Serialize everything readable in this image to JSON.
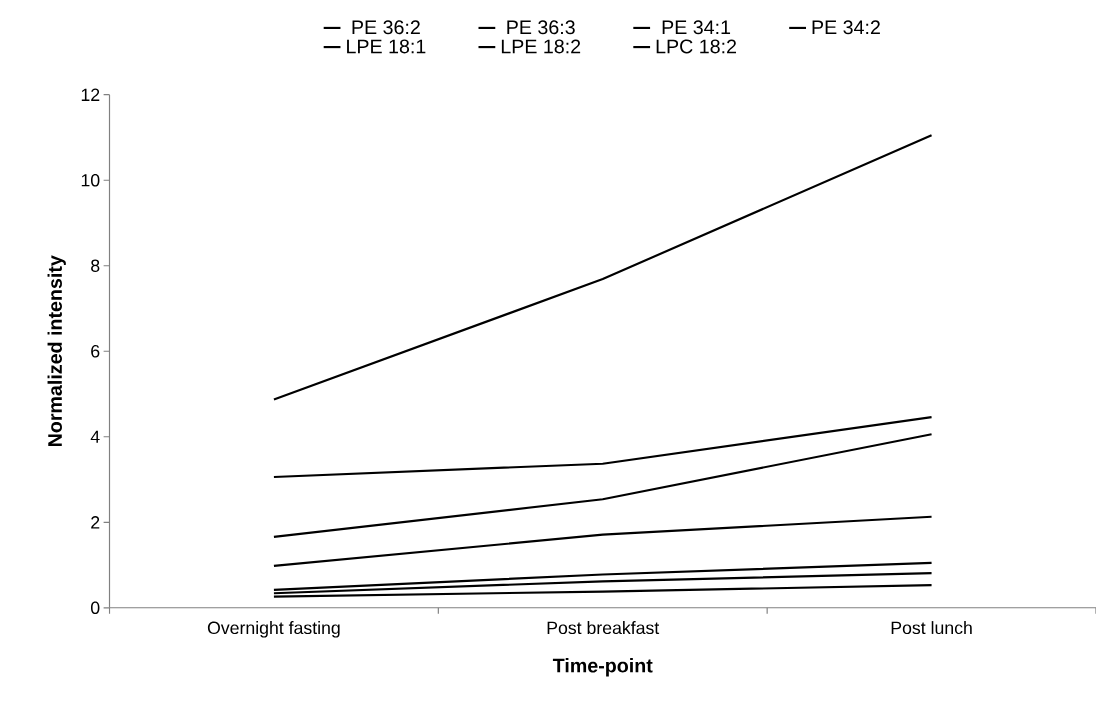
{
  "chart_data": {
    "type": "line",
    "xlabel": "Time-point",
    "ylabel": "Normalized intensity",
    "categories": [
      "Overnight fasting",
      "Post breakfast",
      "Post lunch"
    ],
    "ylim": [
      0,
      12
    ],
    "yticks": [
      0,
      2,
      4,
      6,
      8,
      10,
      12
    ],
    "legend": "top",
    "grid": false,
    "marker": "none",
    "line_style": "solid",
    "series": [
      {
        "name": "PE 36:2",
        "color": "#000000",
        "values": [
          4.87,
          7.69,
          11.05
        ]
      },
      {
        "name": "PE 36:3",
        "color": "#000000",
        "values": [
          3.06,
          3.37,
          4.46
        ]
      },
      {
        "name": "PE 34:1",
        "color": "#000000",
        "values": [
          1.66,
          2.54,
          4.06
        ]
      },
      {
        "name": "PE 34:2",
        "color": "#000000",
        "values": [
          0.98,
          1.71,
          2.13
        ]
      },
      {
        "name": "LPE 18:1",
        "color": "#000000",
        "values": [
          0.42,
          0.78,
          1.05
        ]
      },
      {
        "name": "LPE 18:2",
        "color": "#000000",
        "values": [
          0.34,
          0.62,
          0.81
        ]
      },
      {
        "name": "LPC 18:2",
        "color": "#000000",
        "values": [
          0.26,
          0.38,
          0.53
        ]
      }
    ]
  }
}
